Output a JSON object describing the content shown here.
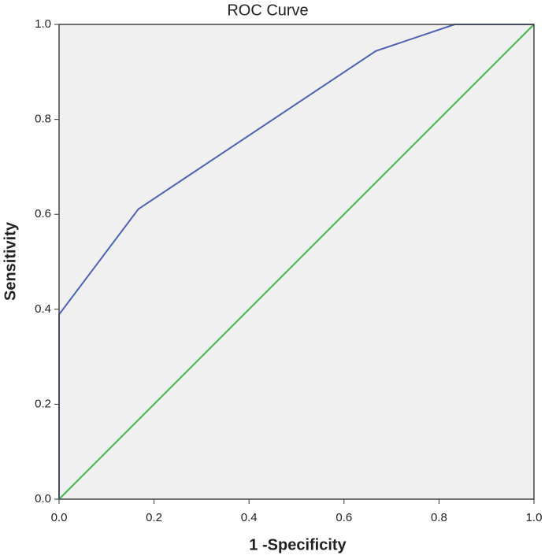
{
  "chart_data": {
    "type": "line",
    "title": "ROC Curve",
    "x_label": "1 -Specificity",
    "y_label": "Sensitivity",
    "series": [
      {
        "color": "#4b62b4",
        "x": [
          0,
          0,
          0.167,
          0.667,
          0.833,
          1
        ],
        "values": [
          0,
          0.389,
          0.611,
          0.944,
          1,
          1
        ]
      },
      {
        "color": "#3fb54a",
        "x": [
          0,
          1
        ],
        "values": [
          0,
          1
        ]
      }
    ],
    "xlim": [
      0,
      1
    ],
    "ylim": [
      0,
      1
    ],
    "xticks": [
      {
        "value": 0,
        "label": "0.0"
      },
      0.2,
      0.4,
      0.6,
      0.8,
      {
        "value": 1,
        "label": "1.0"
      }
    ],
    "yticks": [
      {
        "value": 0,
        "label": "0.0"
      },
      0.2,
      0.4,
      0.6,
      0.8,
      {
        "value": 1,
        "label": "1.0"
      }
    ],
    "grid": false
  }
}
